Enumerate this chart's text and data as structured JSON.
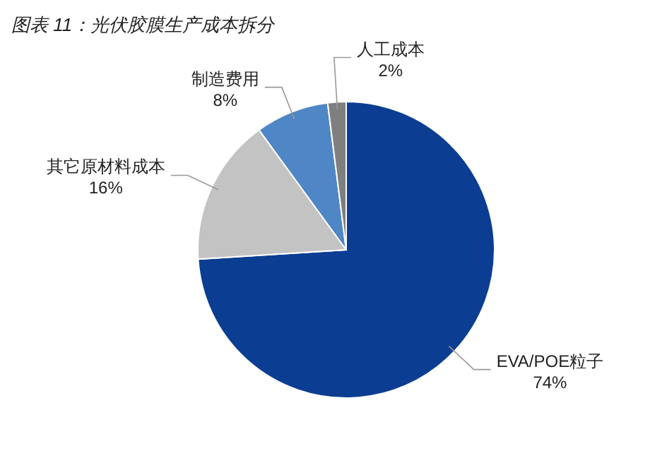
{
  "chart_data": {
    "type": "pie",
    "title": "图表 11：光伏胶膜生产成本拆分",
    "categories": [
      "EVA/POE粒子",
      "其它原材料成本",
      "制造费用",
      "人工成本"
    ],
    "values": [
      74,
      16,
      8,
      2
    ],
    "value_labels": [
      "74%",
      "16%",
      "8%",
      "2%"
    ],
    "colors": [
      "#0b3e92",
      "#c3c3c3",
      "#4f86c6",
      "#7f7f7f"
    ]
  }
}
